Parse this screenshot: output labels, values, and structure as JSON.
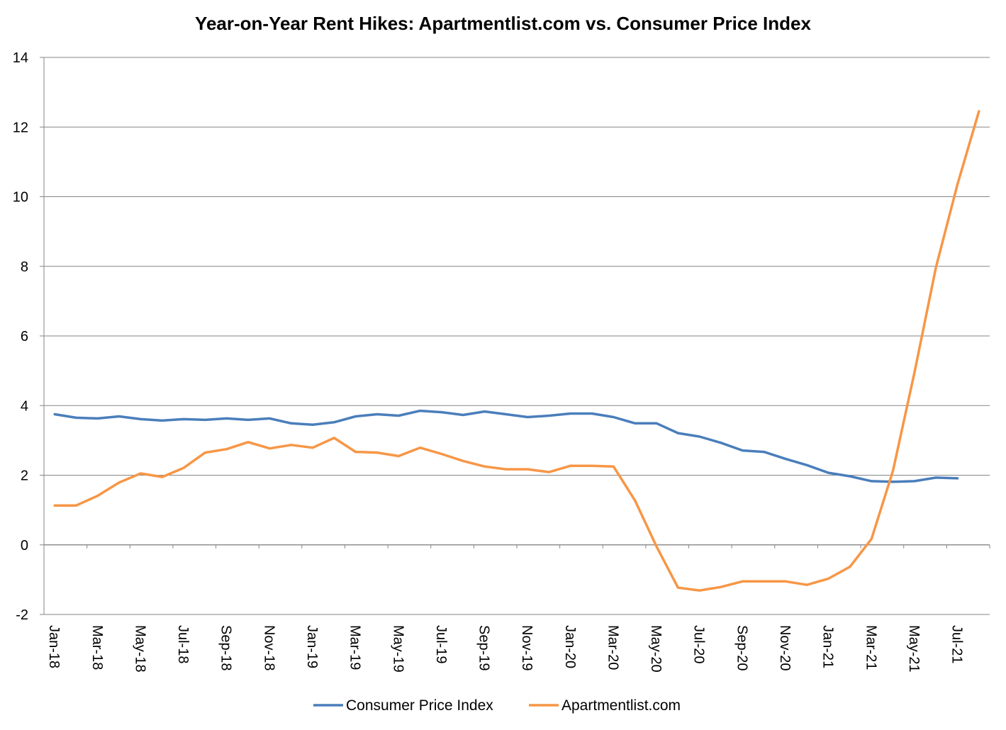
{
  "chart_data": {
    "type": "line",
    "title": "Year-on-Year Rent Hikes: Apartmentlist.com vs. Consumer Price Index",
    "xlabel": "",
    "ylabel": "",
    "ylim": [
      -2,
      14
    ],
    "yticks": [
      -2,
      0,
      2,
      4,
      6,
      8,
      10,
      12,
      14
    ],
    "grid": true,
    "legend_position": "bottom",
    "x": [
      "Jan-18",
      "Feb-18",
      "Mar-18",
      "Apr-18",
      "May-18",
      "Jun-18",
      "Jul-18",
      "Aug-18",
      "Sep-18",
      "Oct-18",
      "Nov-18",
      "Dec-18",
      "Jan-19",
      "Feb-19",
      "Mar-19",
      "Apr-19",
      "May-19",
      "Jun-19",
      "Jul-19",
      "Aug-19",
      "Sep-19",
      "Oct-19",
      "Nov-19",
      "Dec-19",
      "Jan-20",
      "Feb-20",
      "Mar-20",
      "Apr-20",
      "May-20",
      "Jun-20",
      "Jul-20",
      "Aug-20",
      "Sep-20",
      "Oct-20",
      "Nov-20",
      "Dec-20",
      "Jan-21",
      "Feb-21",
      "Mar-21",
      "Apr-21",
      "May-21",
      "Jun-21",
      "Jul-21",
      "Aug-21"
    ],
    "x_tick_labels": [
      "Jan-18",
      "Mar-18",
      "May-18",
      "Jul-18",
      "Sep-18",
      "Nov-18",
      "Jan-19",
      "Mar-19",
      "May-19",
      "Jul-19",
      "Sep-19",
      "Nov-19",
      "Jan-20",
      "Mar-20",
      "May-20",
      "Jul-20",
      "Sep-20",
      "Nov-20",
      "Jan-21",
      "Mar-21",
      "May-21",
      "Jul-21"
    ],
    "series": [
      {
        "name": "Consumer Price Index",
        "color": "#4a7ebb",
        "values": [
          3.75,
          3.65,
          3.63,
          3.69,
          3.61,
          3.57,
          3.61,
          3.59,
          3.63,
          3.59,
          3.63,
          3.49,
          3.45,
          3.52,
          3.69,
          3.75,
          3.71,
          3.85,
          3.81,
          3.73,
          3.83,
          3.75,
          3.67,
          3.71,
          3.77,
          3.77,
          3.67,
          3.49,
          3.49,
          3.21,
          3.11,
          2.93,
          2.71,
          2.67,
          2.47,
          2.29,
          2.07,
          1.97,
          1.83,
          1.81,
          1.83,
          1.93,
          1.91,
          null
        ]
      },
      {
        "name": "Apartmentlist.com",
        "color": "#f79646",
        "values": [
          1.13,
          1.13,
          1.41,
          1.79,
          2.05,
          1.95,
          2.21,
          2.65,
          2.75,
          2.95,
          2.77,
          2.87,
          2.79,
          3.07,
          2.67,
          2.65,
          2.55,
          2.79,
          2.61,
          2.41,
          2.25,
          2.17,
          2.17,
          2.09,
          2.27,
          2.27,
          2.25,
          1.27,
          -0.05,
          -1.23,
          -1.31,
          -1.21,
          -1.05,
          -1.05,
          -1.05,
          -1.15,
          -0.97,
          -0.63,
          0.17,
          2.13,
          4.95,
          7.97,
          10.35,
          12.45
        ]
      }
    ]
  }
}
